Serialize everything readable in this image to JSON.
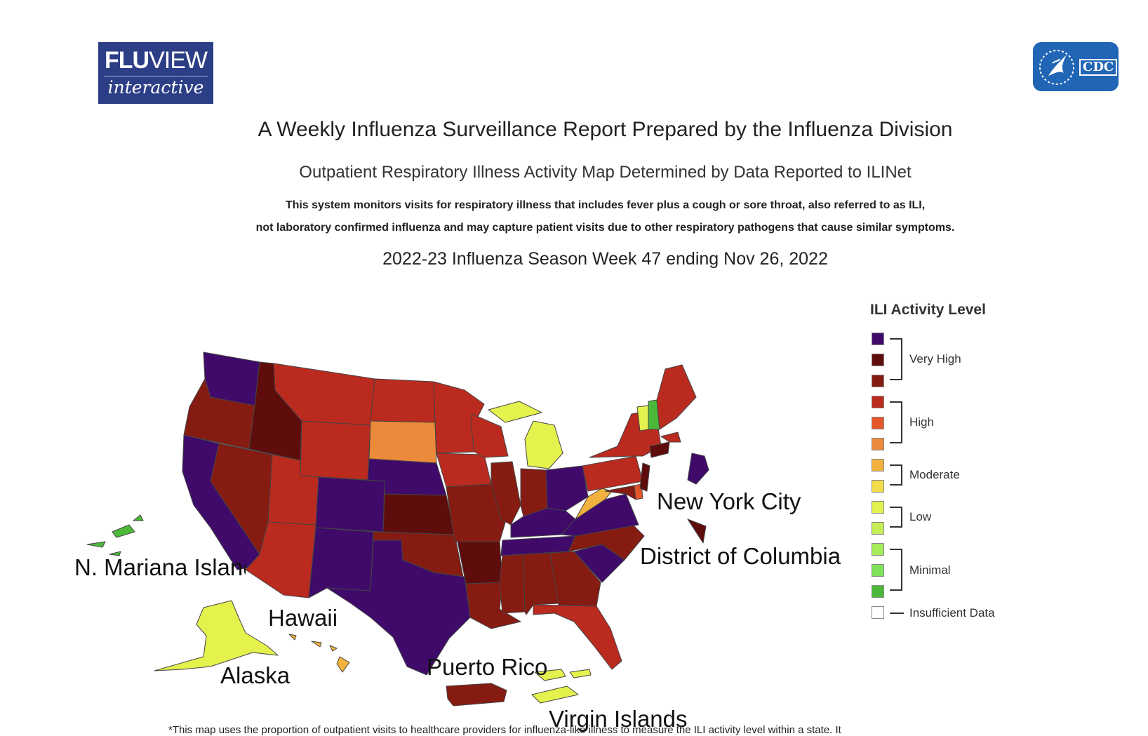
{
  "logos": {
    "fluview_line1_bold": "FLU",
    "fluview_line1_rest": "VIEW",
    "fluview_line2": "interactive",
    "cdc_text": "CDC"
  },
  "header": {
    "title": "A Weekly Influenza Surveillance Report Prepared by the Influenza Division",
    "subtitle": "Outpatient Respiratory Illness Activity Map Determined by Data Reported to ILINet",
    "description_line1": "This system monitors visits for respiratory illness that includes fever plus a cough or sore throat, also referred to as ILI,",
    "description_line2": "not laboratory confirmed influenza and may capture patient visits due to other respiratory pathogens that cause similar symptoms.",
    "season": "2022-23 Influenza Season Week 47 ending Nov 26, 2022"
  },
  "map_labels": {
    "nyc": "New York City",
    "dc": "District of Columbia",
    "nmi": "N. Mariana Islands",
    "hawaii": "Hawaii",
    "alaska": "Alaska",
    "puerto_rico": "Puerto Rico",
    "virgin_islands": "Virgin Islands"
  },
  "legend": {
    "title": "ILI Activity Level",
    "levels": [
      {
        "group": "Very High",
        "color": "#3f0a6a"
      },
      {
        "group": "Very High",
        "color": "#5e0c0c"
      },
      {
        "group": "Very High",
        "color": "#861b12"
      },
      {
        "group": "High",
        "color": "#bb2a1f"
      },
      {
        "group": "High",
        "color": "#e5562a"
      },
      {
        "group": "High",
        "color": "#ea8a3a"
      },
      {
        "group": "Moderate",
        "color": "#f2b23d"
      },
      {
        "group": "Moderate",
        "color": "#f4dc4a"
      },
      {
        "group": "Low",
        "color": "#e5f24d"
      },
      {
        "group": "Low",
        "color": "#c6ee56"
      },
      {
        "group": "Minimal",
        "color": "#a4ec5a"
      },
      {
        "group": "Minimal",
        "color": "#7ee35a"
      },
      {
        "group": "Minimal",
        "color": "#4cb83a"
      }
    ],
    "group_labels": [
      "Very High",
      "High",
      "Moderate",
      "Low",
      "Minimal"
    ],
    "insufficient_label": "Insufficient Data",
    "insufficient_color": "#ffffff"
  },
  "colors": {
    "very_high_purple": "#3f0a6a",
    "very_high_dark": "#5e0c0c",
    "very_high": "#861b12",
    "high_red": "#bb2a1f",
    "high_orange": "#e5562a",
    "high_light": "#ea8a3a",
    "moderate": "#f2b23d",
    "low": "#e5f24d",
    "low2": "#c6ee56",
    "minimal": "#4cb83a"
  },
  "footnote": "*This map uses the proportion of outpatient visits to healthcare providers for influenza-like illness to measure the ILI activity level within a state. It"
}
